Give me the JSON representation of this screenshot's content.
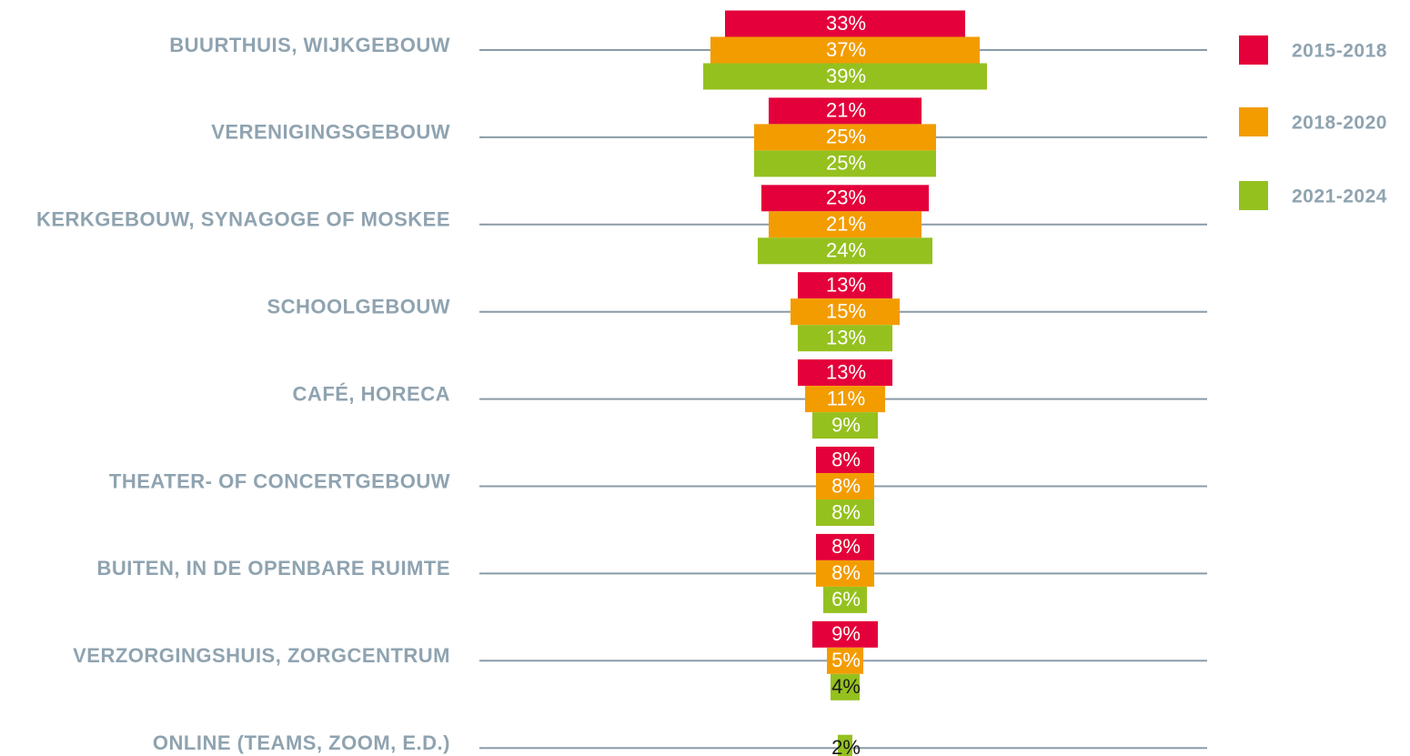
{
  "chart_data": {
    "type": "bar",
    "categories": [
      "BUURTHUIS, WIJKGEBOUW",
      "VERENIGINGSGEBOUW",
      "KERKGEBOUW, SYNAGOGE OF MOSKEE",
      "SCHOOLGEBOUW",
      "CAFÉ, HORECA",
      "THEATER- OF CONCERTGEBOUW",
      "BUITEN, IN DE OPENBARE RUIMTE",
      "VERZORGINGSHUIS, ZORGCENTRUM",
      "ONLINE (TEAMS, ZOOM, E.D.)"
    ],
    "series": [
      {
        "name": "2015-2018",
        "color": "#e4003a",
        "values": [
          33,
          21,
          23,
          13,
          13,
          8,
          8,
          9,
          null
        ],
        "value_labels": [
          "33%",
          "21%",
          "23%",
          "13%",
          "13%",
          "8%",
          "8%",
          "9%",
          null
        ]
      },
      {
        "name": "2018-2020",
        "color": "#f39c00",
        "values": [
          37,
          25,
          21,
          15,
          11,
          8,
          8,
          5,
          null
        ],
        "value_labels": [
          "37%",
          "25%",
          "21%",
          "15%",
          "11%",
          "8%",
          "8%",
          "5%",
          null
        ]
      },
      {
        "name": "2021-2024",
        "color": "#95c11f",
        "values": [
          39,
          25,
          24,
          13,
          9,
          8,
          6,
          4,
          2
        ],
        "value_labels": [
          "39%",
          "25%",
          "24%",
          "13%",
          "9%",
          "8%",
          "6%",
          "4%",
          "2%"
        ]
      }
    ],
    "legend": "right"
  }
}
